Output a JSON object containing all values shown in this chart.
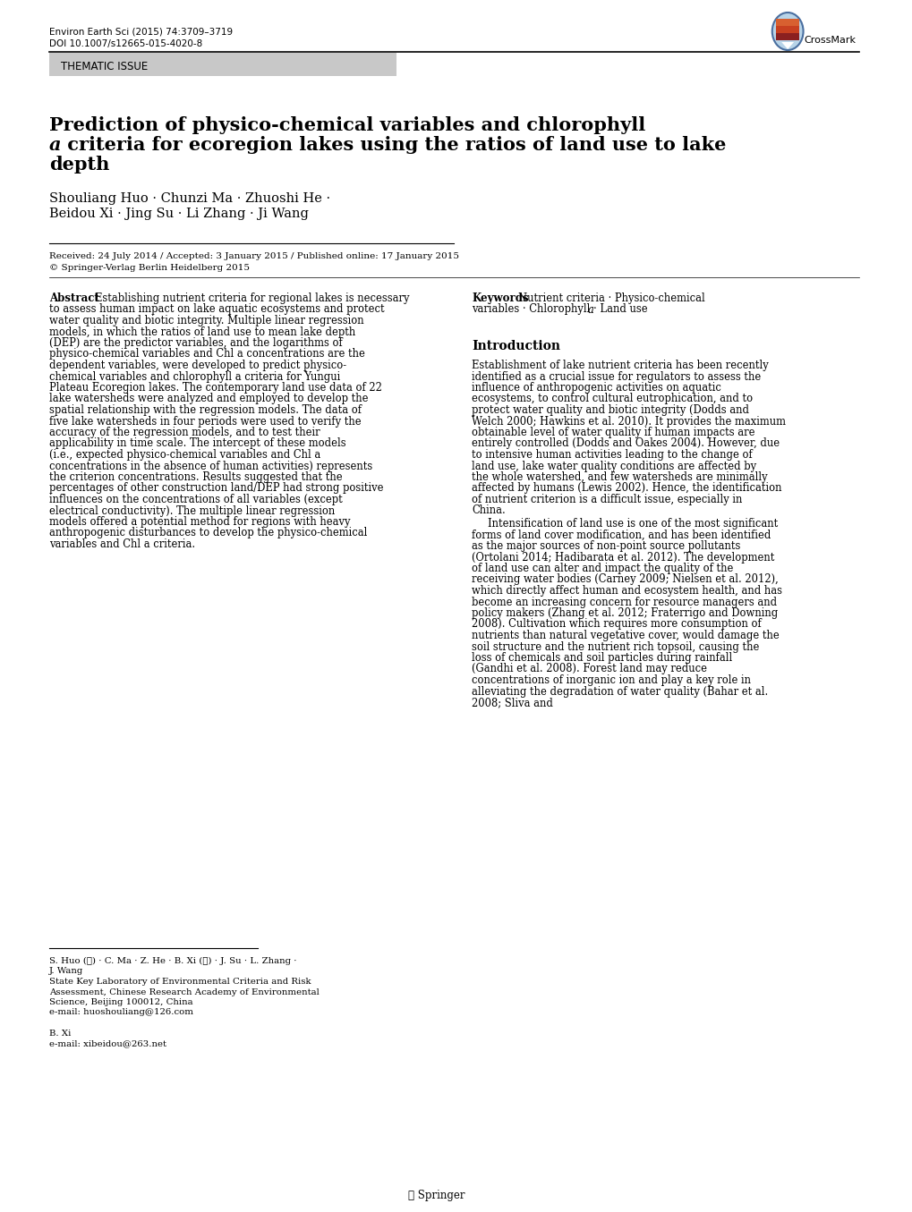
{
  "journal_line1": "Environ Earth Sci (2015) 74:3709–3719",
  "journal_line2": "DOI 10.1007/s12665-015-4020-8",
  "thematic_issue": "THEMATIC ISSUE",
  "title_line1": "Prediction of physico-chemical variables and chlorophyll",
  "title_line2_italic": "a",
  "title_line2_rest": " criteria for ecoregion lakes using the ratios of land use to lake",
  "title_line3": "depth",
  "authors_line1": "Shouliang Huo · Chunzi Ma · Zhuoshi He ·",
  "authors_line2": "Beidou Xi · Jing Su · Li Zhang · Ji Wang",
  "received": "Received: 24 July 2014 / Accepted: 3 January 2015 / Published online: 17 January 2015",
  "copyright": "© Springer-Verlag Berlin Heidelberg 2015",
  "abstract_title": "Abstract",
  "abstract_text": "Establishing nutrient criteria for regional lakes is necessary to assess human impact on lake aquatic ecosystems and protect water quality and biotic integrity. Multiple linear regression models, in which the ratios of land use to mean lake depth (DEP) are the predictor variables, and the logarithms of physico-chemical variables and Chl a concentrations are the dependent variables, were developed to predict physico-chemical variables and chlorophyll a criteria for Yungui Plateau Ecoregion lakes. The contemporary land use data of 22 lake watersheds were analyzed and employed to develop the spatial relationship with the regression models. The data of five lake watersheds in four periods were used to verify the accuracy of the regression models, and to test their applicability in time scale. The intercept of these models (i.e., expected physico-chemical variables and Chl a concentrations in the absence of human activities) represents the criterion concentrations. Results suggested that the percentages of other construction land/DEP had strong positive influences on the concentrations of all variables (except electrical conductivity). The multiple linear regression models offered a potential method for regions with heavy anthropogenic disturbances to develop the physico-chemical variables and Chl a criteria.",
  "keywords_title": "Keywords",
  "keywords_text": "Nutrient criteria · Physico-chemical variables · Chlorophyll a · Land use",
  "intro_title": "Introduction",
  "intro_text": "Establishment of lake nutrient criteria has been recently identified as a crucial issue for regulators to assess the influence of anthropogenic activities on aquatic ecosystems, to control cultural eutrophication, and to protect water quality and biotic integrity (Dodds and Welch 2000; Hawkins et al. 2010). It provides the maximum obtainable level of water quality if human impacts are entirely controlled (Dodds and Oakes 2004). However, due to intensive human activities leading to the change of land use, lake water quality conditions are affected by the whole watershed, and few watersheds are minimally affected by humans (Lewis 2002). Hence, the identification of nutrient criterion is a difficult issue, especially in China.\n    Intensification of land use is one of the most significant forms of land cover modification, and has been identified as the major sources of non-point source pollutants (Ortolani 2014; Hadibarata et al. 2012). The development of land use can alter and impact the quality of the receiving water bodies (Carney 2009; Nielsen et al. 2012), which directly affect human and ecosystem health, and has become an increasing concern for resource managers and policy makers (Zhang et al. 2012; Fraterrigo and Downing 2008). Cultivation which requires more consumption of nutrients than natural vegetative cover, would damage the soil structure and the nutrient rich topsoil, causing the loss of chemicals and soil particles during rainfall (Gandhi et al. 2008). Forest land may reduce concentrations of inorganic ion and play a key role in alleviating the degradation of water quality (Bahar et al. 2008; Sliva and",
  "footnote_line1": "S. Huo (✉) · C. Ma · Z. He · B. Xi (✉) · J. Su · L. Zhang ·",
  "footnote_line2": "J. Wang",
  "footnote_line3": "State Key Laboratory of Environmental Criteria and Risk",
  "footnote_line4": "Assessment, Chinese Research Academy of Environmental",
  "footnote_line5": "Science, Beijing 100012, China",
  "footnote_line6": "e-mail: huoshouliang@126.com",
  "footnote_line7": "B. Xi",
  "footnote_line8": "e-mail: xibeidou@263.net",
  "springer_logo": "④ Springer",
  "bg_color": "#ffffff",
  "thematic_bg": "#c8c8c8",
  "text_color": "#000000",
  "link_color": "#0000cc",
  "title_fontsize": 15,
  "body_fontsize": 8.5,
  "small_fontsize": 7.5,
  "author_fontsize": 10
}
